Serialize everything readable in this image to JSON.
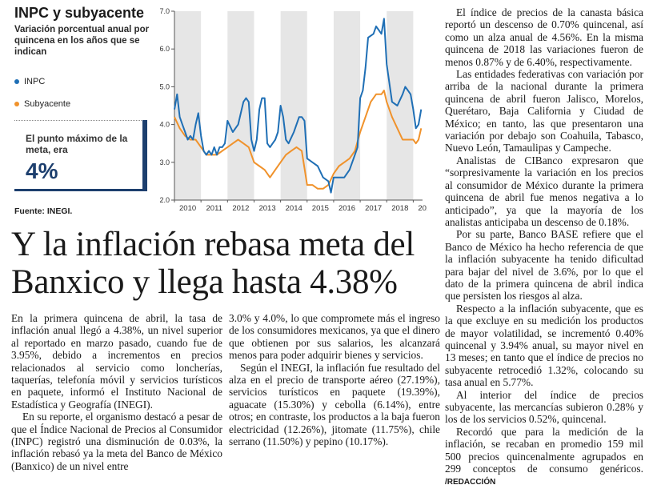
{
  "graphic": {
    "title": "INPC y subyacente",
    "subtitle": "Variación porcentual anual por quincena en los años que se indican",
    "legend": [
      {
        "label": "INPC",
        "color": "#1f6fb5"
      },
      {
        "label": "Subyacente",
        "color": "#f0922b"
      }
    ],
    "highlight": {
      "label": "El punto máximo de la meta, era",
      "value": "4%",
      "accent": "#1d3f6e"
    },
    "source": "Fuente: INEGI."
  },
  "chart_data": {
    "type": "line",
    "x_tick_labels": [
      "2010",
      "2011",
      "2012",
      "2013",
      "2014",
      "2015",
      "2016",
      "2017",
      "2018",
      "2019"
    ],
    "y_tick_labels": [
      "2.0",
      "3.0",
      "4.0",
      "5.0",
      "6.0",
      "7.0"
    ],
    "ylim": [
      2.0,
      7.0
    ],
    "xlim": [
      2010.0,
      2019.35
    ],
    "shaded_years": [
      "2010",
      "2012",
      "2014",
      "2016",
      "2018"
    ],
    "grid": false,
    "series": [
      {
        "name": "INPC",
        "color": "#1f6fb5",
        "x": [
          2010.0,
          2010.1,
          2010.2,
          2010.3,
          2010.4,
          2010.5,
          2010.6,
          2010.7,
          2010.8,
          2010.9,
          2011.0,
          2011.1,
          2011.2,
          2011.3,
          2011.4,
          2011.5,
          2011.6,
          2011.7,
          2011.8,
          2011.9,
          2012.0,
          2012.2,
          2012.4,
          2012.5,
          2012.6,
          2012.7,
          2012.8,
          2012.9,
          2013.0,
          2013.1,
          2013.2,
          2013.3,
          2013.4,
          2013.5,
          2013.6,
          2013.7,
          2013.8,
          2013.9,
          2014.0,
          2014.1,
          2014.2,
          2014.3,
          2014.5,
          2014.7,
          2014.8,
          2014.9,
          2015.0,
          2015.2,
          2015.4,
          2015.6,
          2015.8,
          2015.9,
          2016.0,
          2016.2,
          2016.4,
          2016.6,
          2016.8,
          2016.9,
          2017.0,
          2017.1,
          2017.2,
          2017.3,
          2017.5,
          2017.6,
          2017.7,
          2017.8,
          2017.9,
          2018.0,
          2018.2,
          2018.4,
          2018.6,
          2018.7,
          2018.8,
          2018.9,
          2019.0,
          2019.1,
          2019.2,
          2019.3
        ],
        "values": [
          4.4,
          4.8,
          4.2,
          4.0,
          3.8,
          3.6,
          3.7,
          3.6,
          4.0,
          4.3,
          3.7,
          3.3,
          3.2,
          3.3,
          3.2,
          3.4,
          3.2,
          3.4,
          3.4,
          3.5,
          4.1,
          3.8,
          4.0,
          4.3,
          4.6,
          4.7,
          4.6,
          3.6,
          3.3,
          3.6,
          4.4,
          4.7,
          4.7,
          3.5,
          3.4,
          3.5,
          3.6,
          3.8,
          4.5,
          4.2,
          3.6,
          3.5,
          3.8,
          4.2,
          4.2,
          4.1,
          3.1,
          3.0,
          2.9,
          2.6,
          2.5,
          2.2,
          2.6,
          2.6,
          2.6,
          2.8,
          3.2,
          3.4,
          4.7,
          4.9,
          5.5,
          6.3,
          6.4,
          6.6,
          6.5,
          6.4,
          6.8,
          5.6,
          4.6,
          4.5,
          4.8,
          5.0,
          4.9,
          4.8,
          4.4,
          3.9,
          4.0,
          4.4
        ]
      },
      {
        "name": "Subyacente",
        "color": "#f0922b",
        "x": [
          2010.0,
          2010.2,
          2010.4,
          2010.6,
          2010.8,
          2011.0,
          2011.2,
          2011.4,
          2011.6,
          2011.8,
          2012.0,
          2012.2,
          2012.4,
          2012.6,
          2012.8,
          2013.0,
          2013.2,
          2013.4,
          2013.6,
          2013.8,
          2014.0,
          2014.2,
          2014.4,
          2014.6,
          2014.8,
          2015.0,
          2015.2,
          2015.4,
          2015.6,
          2015.8,
          2016.0,
          2016.2,
          2016.4,
          2016.6,
          2016.8,
          2017.0,
          2017.2,
          2017.4,
          2017.6,
          2017.8,
          2017.9,
          2018.0,
          2018.2,
          2018.4,
          2018.6,
          2018.8,
          2019.0,
          2019.1,
          2019.2,
          2019.3
        ],
        "values": [
          4.2,
          3.9,
          3.7,
          3.6,
          3.6,
          3.4,
          3.2,
          3.2,
          3.2,
          3.3,
          3.4,
          3.5,
          3.6,
          3.5,
          3.4,
          3.0,
          2.9,
          2.8,
          2.6,
          2.8,
          3.0,
          3.2,
          3.3,
          3.4,
          3.3,
          2.4,
          2.4,
          2.3,
          2.3,
          2.4,
          2.7,
          2.9,
          3.0,
          3.1,
          3.3,
          3.8,
          4.2,
          4.6,
          4.8,
          4.8,
          4.9,
          4.6,
          4.2,
          3.9,
          3.6,
          3.6,
          3.6,
          3.5,
          3.6,
          3.9
        ]
      }
    ]
  },
  "article": {
    "headline": "Y la inflación rebasa meta del Banxico y llega hasta 4.38%",
    "col1": [
      "En la primera quincena de abril, la tasa de inflación anual llegó a 4.38%, un nivel superior al reportado en marzo pasado, cuando fue de 3.95%, debido a incrementos en precios relacionados al servicio como loncherías, taquerías, telefonía móvil y servicios turísticos en paquete, informó el Instituto Nacional de Estadística y Geografía (INEGI).",
      "En su reporte, el organismo destacó a pesar de que el Índice Nacional de Precios al Consumidor (INPC) registró una disminución de 0.03%, la inflación rebasó ya la meta del Banco de México (Banxico) de un nivel entre"
    ],
    "col2": [
      "3.0% y 4.0%, lo que compromete más el ingreso de los consumidores mexicanos, ya que el dinero que obtienen por sus salarios, les alcanzará menos para poder adquirir bienes y servicios.",
      "Según el INEGI, la inflación fue resultado del alza en el precio de transporte aéreo (27.19%), servicios turísticos en paquete (19.39%), aguacate (15.30%) y cebolla (6.14%), entre otros; en contraste, los productos a la baja fueron electricidad (12.26%), jitomate (11.75%), chile serrano (11.50%) y pepino (10.17%)."
    ],
    "col3": [
      "El índice de precios de la canasta básica reportó un descenso de 0.70% quincenal, así como un alza anual de 4.56%. En la misma quincena de 2018 las variaciones fueron de menos 0.87% y de 6.40%, respectivamente.",
      "Las entidades federativas con variación por arriba de la nacional durante la primera quincena de abril fueron Jalisco, Morelos, Querétaro, Baja California y Ciudad de México; en tanto, las que presentaron una variación por debajo son Coahuila, Tabasco, Nuevo León, Tamaulipas y Campeche.",
      "Analistas de CIBanco expresaron que “sorpresivamente la variación en los precios al consumidor de México durante la primera quincena de abril fue menos negativa a lo anticipado”, ya que la mayoría de los analistas anticipaba un descenso de 0.18%.",
      "Por su parte, Banco BASE refiere que el Banco de México ha hecho referencia de que la inflación subyacente ha tenido dificultad para bajar del nivel de 3.6%, por lo que el dato de la primera quincena de abril indica que persisten los riesgos al alza.",
      "Respecto a la inflación subyacente, que es la que excluye en su medición los productos de mayor volatilidad, se incrementó 0.40% quincenal y 3.94% anual, su mayor nivel en 13 meses; en tanto que el índice de precios no subyacente retrocedió 1.32%, colocando su tasa anual en 5.77%.",
      "Al interior del índice de precios subyacente, las mercancías subieron 0.28% y los de los servicios 0.52%, quincenal.",
      "Recordó que para la medición de la inflación, se recaban en promedio 159 mil 500 precios quincenalmente agrupados en 299 conceptos de consumo genéricos."
    ],
    "signature": "/REDACCIÓN"
  }
}
